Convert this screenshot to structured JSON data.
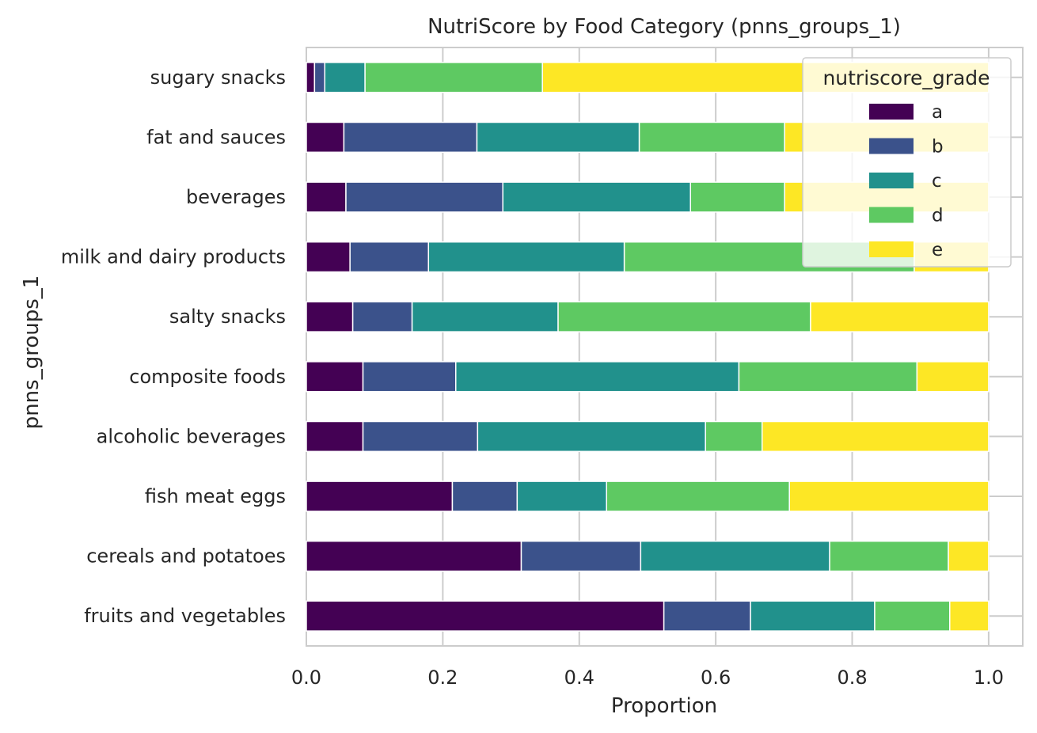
{
  "chart_data": {
    "type": "bar",
    "orientation": "horizontal",
    "stacked": true,
    "title": "NutriScore by Food Category (pnns_groups_1)",
    "xlabel": "Proportion",
    "ylabel": "pnns_groups_1",
    "xlim": [
      0.0,
      1.05
    ],
    "xticks": [
      "0.0",
      "0.2",
      "0.4",
      "0.6",
      "0.8",
      "1.0"
    ],
    "grid": true,
    "legend_title": "nutriscore_grade",
    "legend_position": "top-right",
    "categories": [
      "fruits and vegetables",
      "cereals and potatoes",
      "fish meat eggs",
      "alcoholic beverages",
      "composite foods",
      "salty snacks",
      "milk and dairy products",
      "beverages",
      "fat and sauces",
      "sugary snacks"
    ],
    "series": [
      {
        "name": "a",
        "color": "#440154",
        "values": [
          0.524,
          0.315,
          0.214,
          0.083,
          0.083,
          0.068,
          0.064,
          0.058,
          0.055,
          0.012
        ]
      },
      {
        "name": "b",
        "color": "#3b528b",
        "values": [
          0.127,
          0.175,
          0.095,
          0.168,
          0.136,
          0.087,
          0.115,
          0.23,
          0.195,
          0.015
        ]
      },
      {
        "name": "c",
        "color": "#21918c",
        "values": [
          0.182,
          0.277,
          0.131,
          0.334,
          0.415,
          0.214,
          0.287,
          0.275,
          0.238,
          0.059
        ]
      },
      {
        "name": "d",
        "color": "#5ec962",
        "values": [
          0.11,
          0.174,
          0.268,
          0.083,
          0.261,
          0.37,
          0.425,
          0.138,
          0.213,
          0.26
        ]
      },
      {
        "name": "e",
        "color": "#fde725",
        "values": [
          0.057,
          0.059,
          0.292,
          0.332,
          0.105,
          0.261,
          0.109,
          0.299,
          0.299,
          0.654
        ]
      }
    ]
  }
}
